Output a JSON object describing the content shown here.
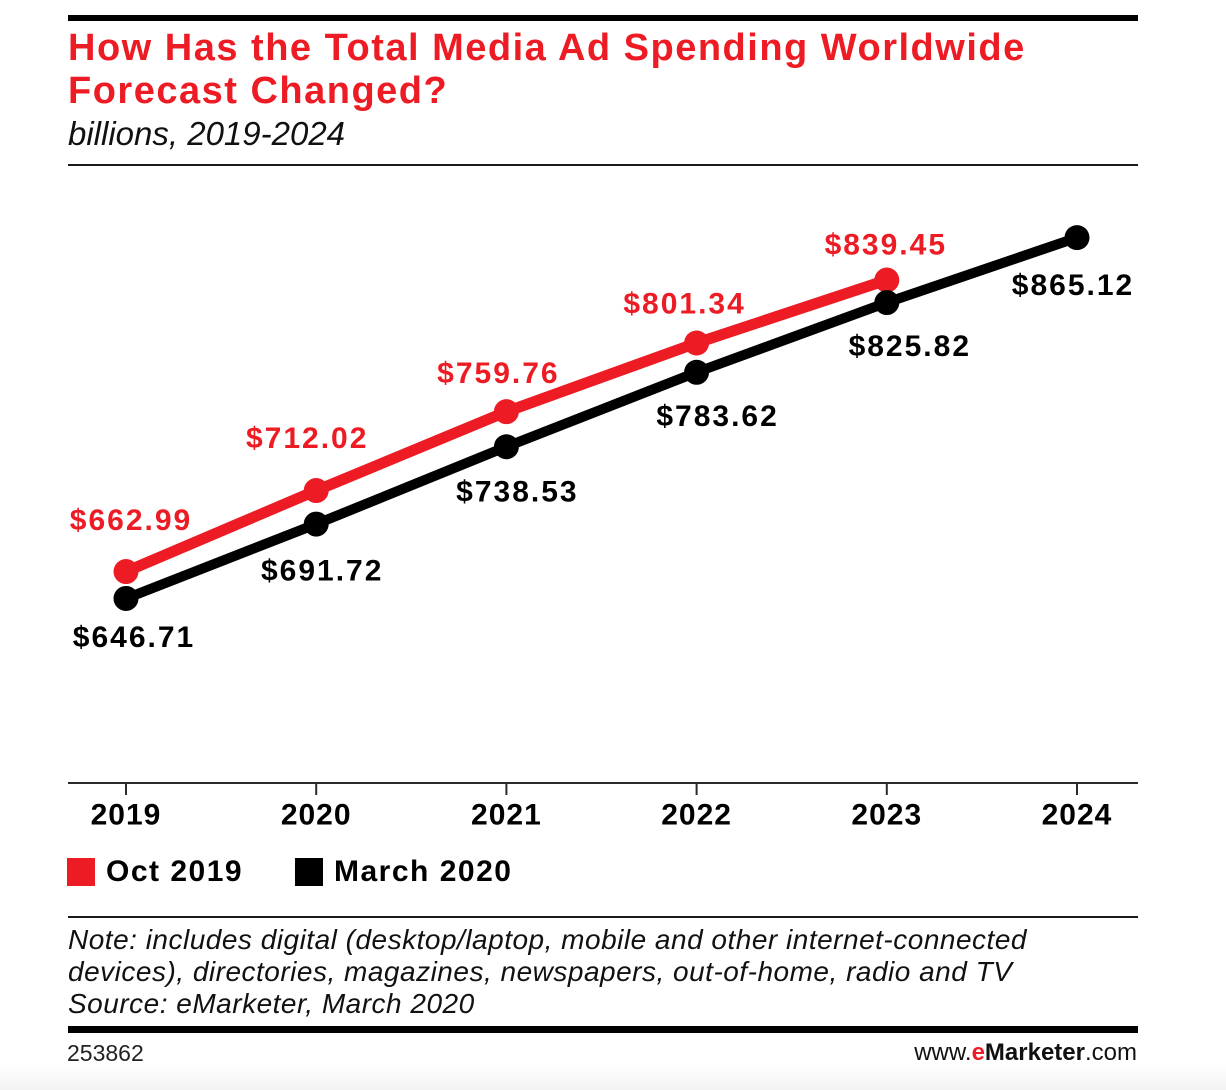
{
  "header": {
    "title_lines": [
      "How Has the Total Media Ad Spending Worldwide",
      "Forecast Changed?"
    ],
    "subtitle": "billions, 2019-2024"
  },
  "chart_data": {
    "type": "line",
    "title": "How Has the Total Media Ad Spending Worldwide Forecast Changed?",
    "subtitle": "billions, 2019-2024",
    "xlabel": "",
    "ylabel": "",
    "categories": [
      "2019",
      "2020",
      "2021",
      "2022",
      "2023",
      "2024"
    ],
    "ylim": [
      535,
      900
    ],
    "grid": false,
    "y_axis_visible": false,
    "legend": "bottom-left",
    "series": [
      {
        "name": "Oct 2019",
        "color": "#ed1c24",
        "values": [
          662.99,
          712.02,
          759.76,
          801.34,
          839.45,
          null
        ],
        "labels": [
          "$662.99",
          "$712.02",
          "$759.76",
          "$801.34",
          "$839.45",
          null
        ]
      },
      {
        "name": "March 2020",
        "color": "#000000",
        "values": [
          646.71,
          691.72,
          738.53,
          783.62,
          825.82,
          865.12
        ],
        "labels": [
          "$646.71",
          "$691.72",
          "$738.53",
          "$783.62",
          "$825.82",
          "$865.12"
        ]
      }
    ]
  },
  "footnote": {
    "lines": [
      "Note: includes digital (desktop/laptop, mobile and other internet-connected",
      "devices), directories, magazines, newspapers, out-of-home, radio and TV",
      "Source: eMarketer, March 2020"
    ]
  },
  "footer": {
    "chart_id": "253862",
    "site": {
      "prefix": "www.",
      "brand_e": "e",
      "brand_rest": "Marketer",
      "suffix": ".com"
    }
  },
  "colors": {
    "accent": "#ed1c24",
    "text": "#000000"
  }
}
